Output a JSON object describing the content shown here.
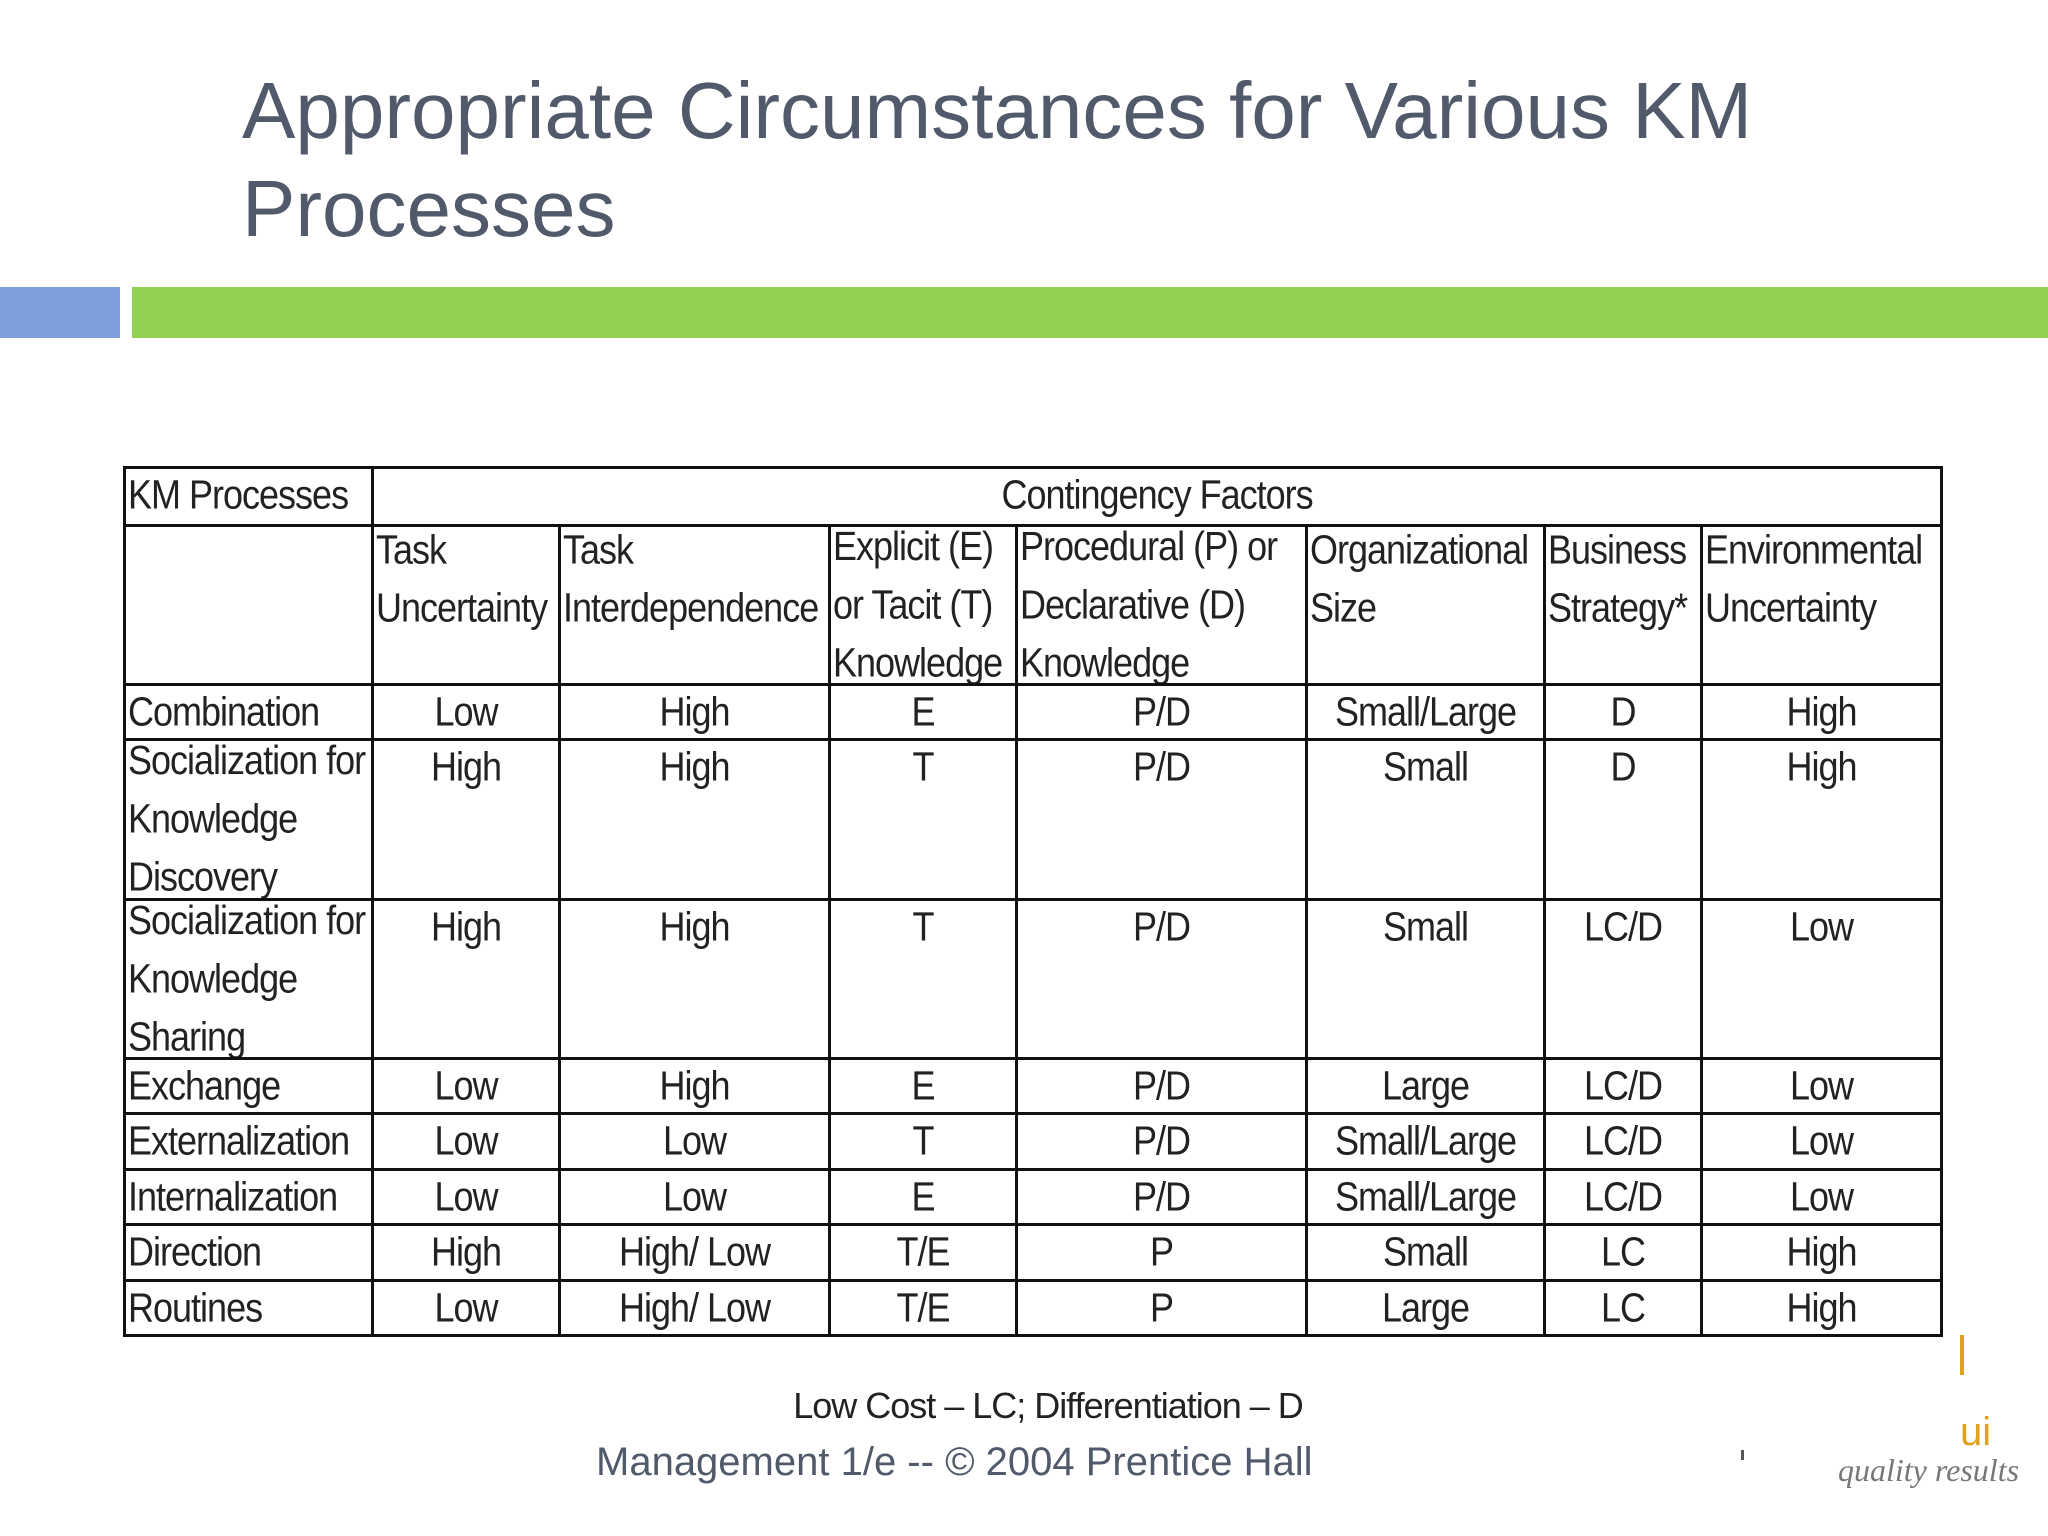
{
  "slide": {
    "title": "Appropriate Circumstances for Various KM Processes",
    "footnote": "Low Cost – LC; Differentiation – D",
    "footer": "Management 1/e  --  © 2004 Prentice Hall",
    "logo_text": "ui",
    "logo_tagline": "quality results"
  },
  "table": {
    "corner": "KM Processes",
    "group_header": "Contingency Factors",
    "columns": [
      "Task Uncertainty",
      "Task Interdependence",
      "Explicit (E) or Tacit (T) Knowledge",
      "Procedural (P) or Declarative (D) Knowledge",
      "Organizational Size",
      "Business Strategy*",
      "Environmental Uncertainty"
    ],
    "rows": [
      {
        "process": "Combination",
        "values": [
          "Low",
          "High",
          "E",
          "P/D",
          "Small/Large",
          "D",
          "High"
        ]
      },
      {
        "process": "Socialization for Knowledge Discovery",
        "values": [
          "High",
          "High",
          "T",
          "P/D",
          "Small",
          "D",
          "High"
        ]
      },
      {
        "process": "Socialization for Knowledge Sharing",
        "values": [
          "High",
          "High",
          "T",
          "P/D",
          "Small",
          "LC/D",
          "Low"
        ]
      },
      {
        "process": "Exchange",
        "values": [
          "Low",
          "High",
          "E",
          "P/D",
          "Large",
          "LC/D",
          "Low"
        ]
      },
      {
        "process": "Externalization",
        "values": [
          "Low",
          "Low",
          "T",
          "P/D",
          "Small/Large",
          "LC/D",
          "Low"
        ]
      },
      {
        "process": "Internalization",
        "values": [
          "Low",
          "Low",
          "E",
          "P/D",
          "Small/Large",
          "LC/D",
          "Low"
        ]
      },
      {
        "process": "Direction",
        "values": [
          "High",
          "High/ Low",
          "T/E",
          "P",
          "Small",
          "LC",
          "High"
        ]
      },
      {
        "process": "Routines",
        "values": [
          "Low",
          "High/ Low",
          "T/E",
          "P",
          "Large",
          "LC",
          "High"
        ]
      }
    ]
  }
}
